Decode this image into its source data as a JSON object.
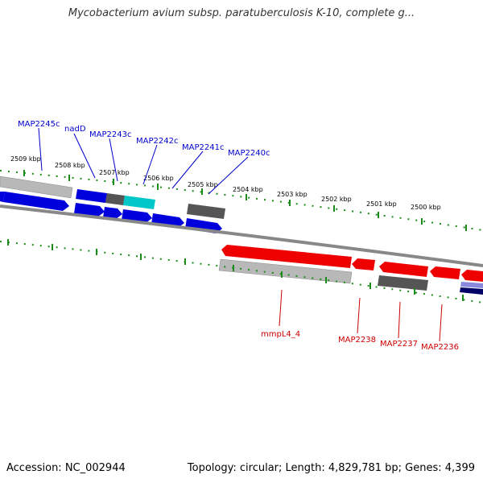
{
  "title": "Mycobacterium avium subsp. paratuberculosis K-10, complete g...",
  "footer": {
    "accession": "Accession: NC_002944",
    "meta": "Topology: circular; Length: 4,829,781 bp; Genes: 4,399"
  },
  "colors": {
    "forward_cds": "#0000dd",
    "reverse_cds": "#ee0000",
    "other_feature": "#555555",
    "light_feature": "#b8b8b8",
    "highlight": "#00c8c8",
    "tick": "#1a8c1a",
    "backbone": "#888888"
  },
  "ticks": [
    "2509 kbp",
    "2508 kbp",
    "2507 kbp",
    "2506 kbp",
    "2505 kbp",
    "2504 kbp",
    "2503 kbp",
    "2502 kbp",
    "2501 kbp",
    "2500 kbp"
  ],
  "gene_labels": {
    "forward": [
      "MAP2245c",
      "nadD",
      "MAP2243c",
      "MAP2242c",
      "MAP2241c",
      "MAP2240c"
    ],
    "reverse": [
      "mmpL4_4",
      "MAP2238",
      "MAP2237",
      "MAP2236"
    ]
  }
}
